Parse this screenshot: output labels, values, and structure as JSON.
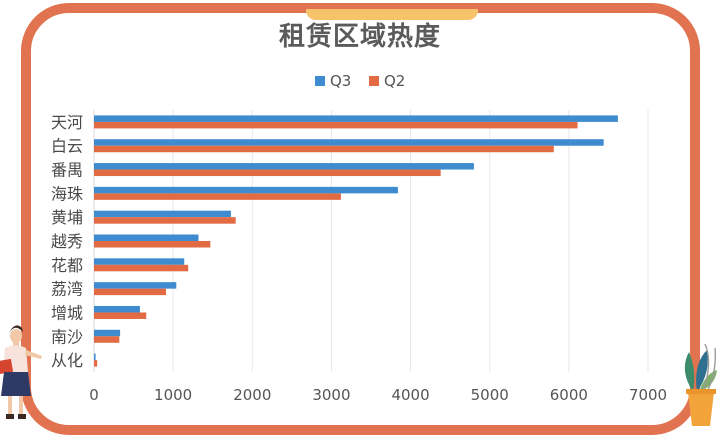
{
  "colors": {
    "frame": "#E27350",
    "accent_tab": "#F6C36A",
    "q3": "#3F8BD0",
    "q2": "#E26B44",
    "grid": "#E6E6E6",
    "title": "#5B5B5B"
  },
  "decorations": {
    "left": "woman-with-folder-illustration",
    "right": "potted-plant-illustration"
  },
  "chart_data": {
    "type": "bar",
    "orientation": "horizontal",
    "title": "租赁区域热度",
    "categories": [
      "天河",
      "白云",
      "番禺",
      "海珠",
      "黄埔",
      "越秀",
      "花都",
      "荔湾",
      "增城",
      "南沙",
      "从化"
    ],
    "series": [
      {
        "name": "Q3",
        "values": [
          6620,
          6440,
          4800,
          3840,
          1730,
          1320,
          1140,
          1040,
          580,
          330,
          20
        ]
      },
      {
        "name": "Q2",
        "values": [
          6110,
          5810,
          4380,
          3120,
          1790,
          1470,
          1190,
          910,
          660,
          320,
          40
        ]
      }
    ],
    "xlim": [
      0,
      7000
    ],
    "x_ticks": [
      "0",
      "1000",
      "2000",
      "3000",
      "4000",
      "5000",
      "6000",
      "7000"
    ],
    "grid": true,
    "legend": "top-center"
  }
}
